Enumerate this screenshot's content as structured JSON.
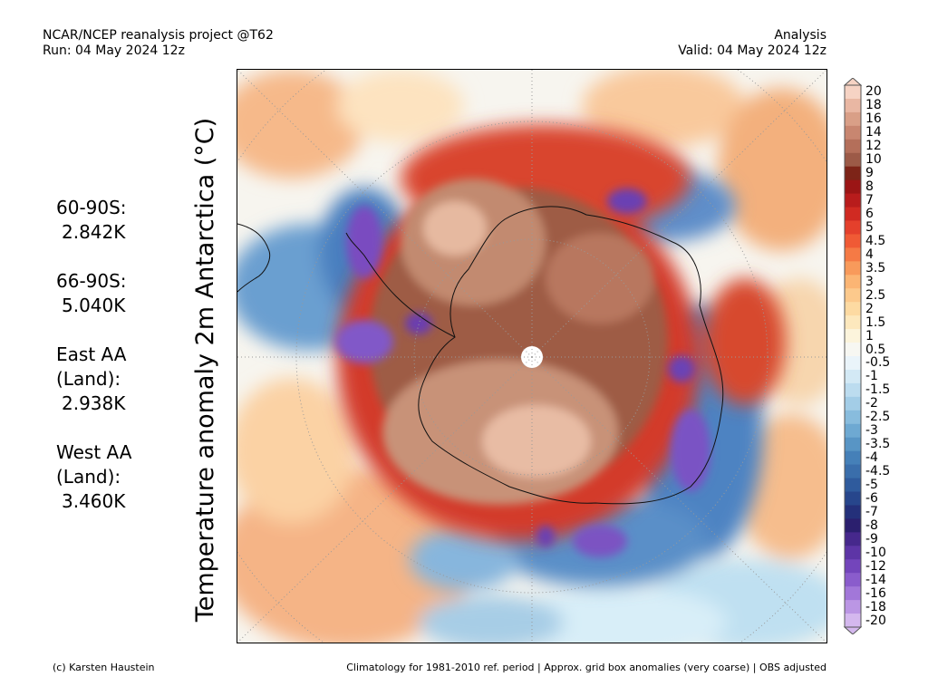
{
  "header": {
    "left_line1": "NCAR/NCEP reanalysis project @T62",
    "left_line2": "Run: 04 May 2024 12z",
    "right_line1": "Analysis",
    "right_line2": "Valid: 04 May 2024 12z"
  },
  "map_title": "Temperature anomaly 2m Antarctica (°C)",
  "stats": [
    {
      "label": "60-90S:",
      "value": "2.842K"
    },
    {
      "label": "66-90S:",
      "value": "5.040K"
    },
    {
      "label": "East AA\n(Land):",
      "value": "2.938K"
    },
    {
      "label": "West AA\n(Land):",
      "value": "3.460K"
    }
  ],
  "colorbar": {
    "labels": [
      "20",
      "18",
      "16",
      "14",
      "12",
      "10",
      "9",
      "8",
      "7",
      "6",
      "5",
      "4.5",
      "4",
      "3.5",
      "3",
      "2.5",
      "2",
      "1.5",
      "1",
      "0.5",
      "-0.5",
      "-1",
      "-1.5",
      "-2",
      "-2.5",
      "-3",
      "-3.5",
      "-4",
      "-4.5",
      "-5",
      "-6",
      "-7",
      "-8",
      "-9",
      "-10",
      "-12",
      "-14",
      "-16",
      "-18",
      "-20"
    ],
    "colors": [
      "#f6d3c4",
      "#e9b7a3",
      "#d99f87",
      "#c88670",
      "#b46f5a",
      "#9c5a47",
      "#7d2418",
      "#9b1515",
      "#b81c1c",
      "#d02a22",
      "#e4402c",
      "#f05a35",
      "#f57a45",
      "#f89a5b",
      "#fbb574",
      "#fcc98c",
      "#fddaa2",
      "#fde8bd",
      "#fcf4dc",
      "#f7f7f2",
      "#eaf4fa",
      "#d3e9f5",
      "#bcdcef",
      "#a3cde7",
      "#88bcdd",
      "#6ea9d2",
      "#5895c5",
      "#4580b8",
      "#3a6eab",
      "#2f5b9d",
      "#27468c",
      "#24307a",
      "#2b1f6e",
      "#46288c",
      "#5d35a6",
      "#7345bb",
      "#8a5ccc",
      "#a277d9",
      "#bb96e4",
      "#d4b8ee"
    ]
  },
  "footer": {
    "left": "(c) Karsten Haustein",
    "right": "Climatology for 1981-2010 ref. period | Approx. grid box anomalies (very coarse) | OBS adjusted"
  }
}
